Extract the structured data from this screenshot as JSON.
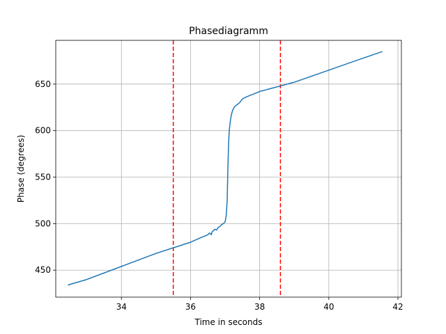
{
  "chart_data": {
    "type": "line",
    "title": "Phasediagramm",
    "xlabel": "Time in seconds",
    "ylabel": "Phase (degrees)",
    "xlim": [
      32.1,
      42.1
    ],
    "ylim": [
      421,
      697
    ],
    "xticks": [
      34,
      36,
      38,
      40,
      42
    ],
    "yticks": [
      450,
      500,
      550,
      600,
      650
    ],
    "grid": true,
    "line_color": "#1f77b4",
    "vline_color": "#ff0000",
    "vlines": [
      35.5,
      38.6
    ],
    "series": [
      {
        "x": [
          32.45,
          33.0,
          34.0,
          35.0,
          35.5,
          36.0,
          36.3,
          36.5,
          36.55,
          36.6,
          36.62,
          36.65,
          36.7,
          36.75,
          36.8,
          36.85,
          36.9,
          36.95,
          37.0,
          37.03,
          37.06,
          37.08,
          37.1,
          37.12,
          37.15,
          37.18,
          37.22,
          37.28,
          37.35,
          37.42,
          37.5,
          37.6,
          37.8,
          38.0,
          38.3,
          38.6,
          39.0,
          40.0,
          41.0,
          41.55
        ],
        "y": [
          434,
          440,
          454,
          468,
          474,
          480,
          485,
          488,
          490,
          488,
          491,
          492,
          494,
          493,
          496,
          497,
          499,
          500,
          502,
          508,
          525,
          560,
          585,
          600,
          610,
          617,
          622,
          626,
          628,
          630,
          634,
          636,
          639,
          642,
          645,
          648,
          652,
          665,
          678,
          685
        ]
      }
    ]
  }
}
